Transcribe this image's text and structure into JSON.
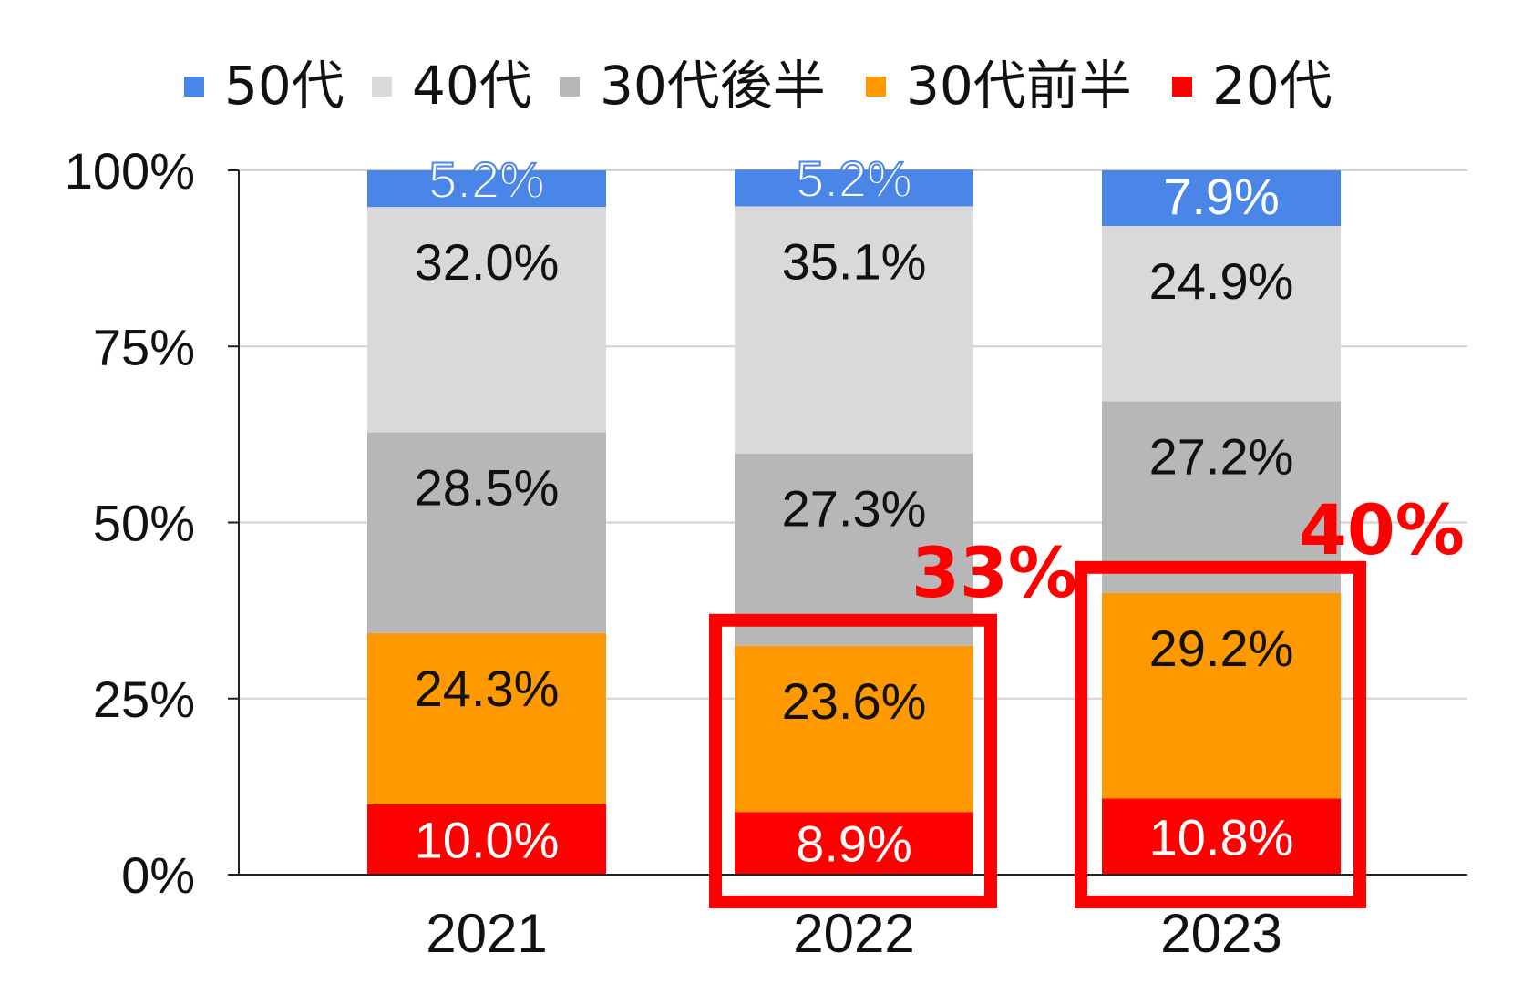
{
  "chart_data": {
    "type": "bar",
    "stacked": true,
    "percent": true,
    "categories": [
      "2021",
      "2022",
      "2023"
    ],
    "series": [
      {
        "name": "20代",
        "color": "#ff0000",
        "label_color": "#ffffff",
        "values": [
          10.0,
          8.9,
          10.8
        ],
        "labels": [
          "10.0%",
          "8.9%",
          "10.8%"
        ]
      },
      {
        "name": "30代前半",
        "color": "#ff9900",
        "label_color": "#111111",
        "values": [
          24.3,
          23.6,
          29.2
        ],
        "labels": [
          "24.3%",
          "23.6%",
          "29.2%"
        ]
      },
      {
        "name": "30代後半",
        "color": "#b7b7b7",
        "label_color": "#111111",
        "values": [
          28.5,
          27.3,
          27.2
        ],
        "labels": [
          "28.5%",
          "27.3%",
          "27.2%"
        ]
      },
      {
        "name": "40代",
        "color": "#d9d9d9",
        "label_color": "#111111",
        "values": [
          32.0,
          35.1,
          24.9
        ],
        "labels": [
          "32.0%",
          "35.1%",
          "24.9%"
        ]
      },
      {
        "name": "50代",
        "color": "#4a86e8",
        "label_color": "#4a86e8",
        "values": [
          5.2,
          5.2,
          7.9
        ],
        "labels": [
          "5.2%",
          "5.2%",
          "7.9%"
        ]
      }
    ],
    "legend_order": [
      "50代",
      "40代",
      "30代後半",
      "30代前半",
      "20代"
    ],
    "legend_position": "top",
    "yticks": [
      "0%",
      "25%",
      "50%",
      "75%",
      "100%"
    ],
    "ylim": [
      0,
      100
    ],
    "grid": true,
    "annotations": [
      {
        "text": "33%",
        "category": "2022",
        "from": 0,
        "to": 32.5,
        "color": "#ff0000"
      },
      {
        "text": "40%",
        "category": "2023",
        "from": 0,
        "to": 40.0,
        "color": "#ff0000"
      }
    ]
  }
}
